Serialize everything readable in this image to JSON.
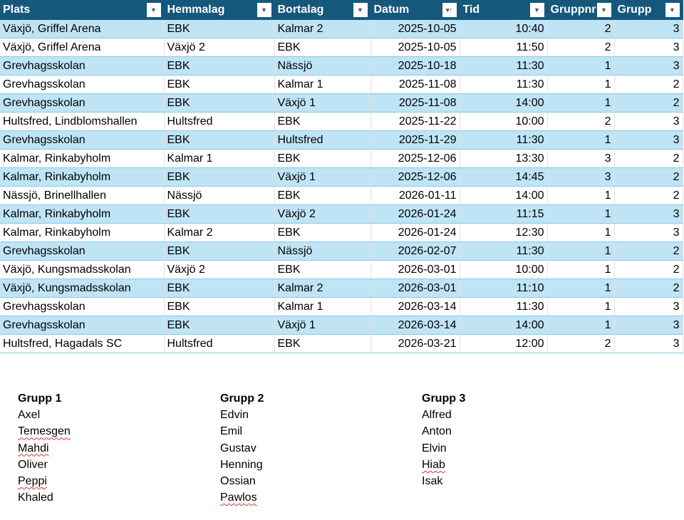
{
  "table": {
    "headers": [
      "Plats",
      "Hemmalag",
      "Bortalag",
      "Datum",
      "Tid",
      "Gruppnr",
      "Grupp"
    ],
    "sorted_column": "Datum",
    "rows": [
      [
        "Växjö, Griffel Arena",
        "EBK",
        "Kalmar 2",
        "2025-10-05",
        "10:40",
        "2",
        "3"
      ],
      [
        "Växjö, Griffel Arena",
        "Växjö 2",
        "EBK",
        "2025-10-05",
        "11:50",
        "2",
        "3"
      ],
      [
        "Grevhagsskolan",
        "EBK",
        "Nässjö",
        "2025-10-18",
        "11:30",
        "1",
        "3"
      ],
      [
        "Grevhagsskolan",
        "EBK",
        "Kalmar 1",
        "2025-11-08",
        "11:30",
        "1",
        "2"
      ],
      [
        "Grevhagsskolan",
        "EBK",
        "Växjö 1",
        "2025-11-08",
        "14:00",
        "1",
        "2"
      ],
      [
        "Hultsfred, Lindblomshallen",
        "Hultsfred",
        "EBK",
        "2025-11-22",
        "10:00",
        "2",
        "3"
      ],
      [
        "Grevhagsskolan",
        "EBK",
        "Hultsfred",
        "2025-11-29",
        "11:30",
        "1",
        "3"
      ],
      [
        "Kalmar, Rinkabyholm",
        "Kalmar 1",
        "EBK",
        "2025-12-06",
        "13:30",
        "3",
        "2"
      ],
      [
        "Kalmar, Rinkabyholm",
        "EBK",
        "Växjö 1",
        "2025-12-06",
        "14:45",
        "3",
        "2"
      ],
      [
        "Nässjö, Brinellhallen",
        "Nässjö",
        "EBK",
        "2026-01-11",
        "14:00",
        "1",
        "2"
      ],
      [
        "Kalmar, Rinkabyholm",
        "EBK",
        "Växjö 2",
        "2026-01-24",
        "11:15",
        "1",
        "3"
      ],
      [
        "Kalmar, Rinkabyholm",
        "Kalmar 2",
        "EBK",
        "2026-01-24",
        "12:30",
        "1",
        "3"
      ],
      [
        "Grevhagsskolan",
        "EBK",
        "Nässjö",
        "2026-02-07",
        "11:30",
        "1",
        "2"
      ],
      [
        "Växjö, Kungsmadsskolan",
        "Växjö 2",
        "EBK",
        "2026-03-01",
        "10:00",
        "1",
        "2"
      ],
      [
        "Växjö, Kungsmadsskolan",
        "EBK",
        "Kalmar 2",
        "2026-03-01",
        "11:10",
        "1",
        "2"
      ],
      [
        "Grevhagsskolan",
        "EBK",
        "Kalmar 1",
        "2026-03-14",
        "11:30",
        "1",
        "3"
      ],
      [
        "Grevhagsskolan",
        "EBK",
        "Växjö 1",
        "2026-03-14",
        "14:00",
        "1",
        "3"
      ],
      [
        "Hultsfred, Hagadals SC",
        "Hultsfred",
        "EBK",
        "2026-03-21",
        "12:00",
        "2",
        "3"
      ]
    ]
  },
  "groups": [
    {
      "title": "Grupp 1",
      "members": [
        "Axel",
        "Temesgen",
        "Mahdi",
        "Oliver",
        "Peppi",
        "Khaled"
      ],
      "misspelled": [
        "Temesgen",
        "Mahdi",
        "Peppi"
      ]
    },
    {
      "title": "Grupp 2",
      "members": [
        "Edvin",
        "Emil",
        "Gustav",
        "Henning",
        "Ossian",
        "Pawlos"
      ],
      "misspelled": [
        "Pawlos"
      ]
    },
    {
      "title": "Grupp 3",
      "members": [
        "Alfred",
        "Anton",
        "Elvin",
        "Hiab",
        "Isak"
      ],
      "misspelled": [
        "Hiab"
      ]
    }
  ],
  "colors": {
    "header": "#15587c",
    "band": "#bfe4f5",
    "border": "#8cc8e6"
  }
}
